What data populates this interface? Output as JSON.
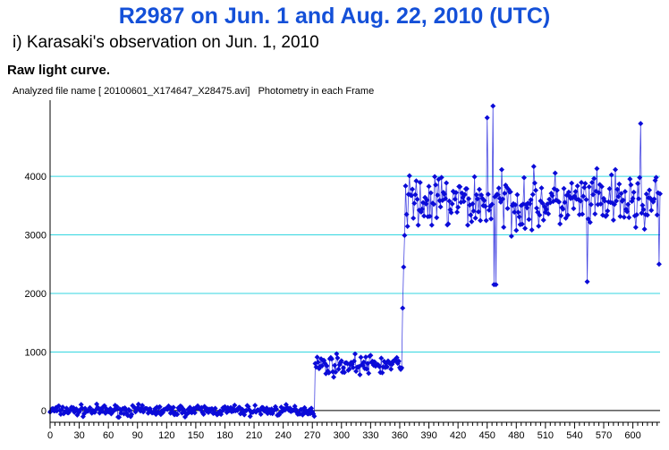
{
  "header": {
    "title": "R2987 on Jun. 1 and Aug. 22, 2010 (UTC)",
    "subtitle": "i) Karasaki's observation on Jun. 1, 2010",
    "section_label": "Raw light curve.",
    "file_info": "Analyzed file name [ 20100601_X174647_X28475.avi]   Photometry in each Frame"
  },
  "colors": {
    "title": "#1450d8",
    "gridline": "#33d6e0",
    "series": "#0b0bd8",
    "axis": "#000000"
  },
  "chart_data": {
    "type": "line",
    "title": "Raw light curve.",
    "xlabel": "",
    "ylabel": "",
    "xlim": [
      0,
      628
    ],
    "ylim": [
      -200,
      5300
    ],
    "yticks": [
      0,
      1000,
      2000,
      3000,
      4000
    ],
    "xticks": [
      0,
      30,
      60,
      90,
      120,
      150,
      180,
      210,
      240,
      270,
      300,
      330,
      360,
      390,
      420,
      450,
      480,
      510,
      540,
      570,
      600
    ],
    "grid": "horizontal",
    "legend": "none",
    "series": [
      {
        "style": "line-with-diamond-markers",
        "description_levels": [
          {
            "x_from": 0,
            "x_to": 272,
            "mean": 0,
            "spread": 120
          },
          {
            "x_from": 273,
            "x_to": 362,
            "mean": 780,
            "spread": 220
          },
          {
            "x_from": 363,
            "x_to": 628,
            "mean": 3550,
            "spread": 650
          }
        ],
        "notable_points": [
          {
            "x": 363,
            "y": 1750
          },
          {
            "x": 364,
            "y": 2450
          },
          {
            "x": 367,
            "y": 3350
          },
          {
            "x": 450,
            "y": 5000
          },
          {
            "x": 456,
            "y": 5200
          },
          {
            "x": 457,
            "y": 2150
          },
          {
            "x": 459,
            "y": 2150
          },
          {
            "x": 553,
            "y": 2200
          },
          {
            "x": 608,
            "y": 4900
          },
          {
            "x": 627,
            "y": 2500
          }
        ]
      }
    ]
  }
}
